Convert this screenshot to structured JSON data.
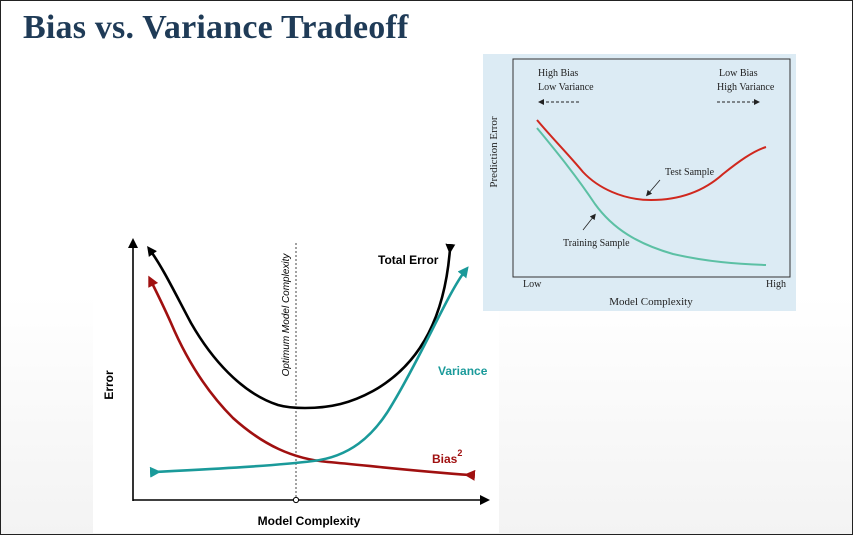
{
  "slide": {
    "title": "Bias vs. Variance Tradeoff"
  },
  "left_diagram": {
    "y_axis_label": "Error",
    "x_axis_label": "Model Complexity",
    "optimum_label": "Optimum Model Complexity",
    "total_error_label": "Total Error",
    "variance_label": "Variance",
    "bias_label": "Bias",
    "bias_exponent": "2",
    "colors": {
      "total_error": "#000000",
      "variance": "#1a9a9a",
      "bias": "#a01010"
    }
  },
  "right_diagram": {
    "y_axis_label": "Prediction Error",
    "x_axis_label": "Model Complexity",
    "x_low_label": "Low",
    "x_high_label": "High",
    "left_note_line1": "High Bias",
    "left_note_line2": "Low Variance",
    "right_note_line1": "Low Bias",
    "right_note_line2": "High Variance",
    "test_sample_label": "Test Sample",
    "training_sample_label": "Training Sample",
    "colors": {
      "test_sample": "#d0281e",
      "training_sample": "#5cc0a4"
    }
  }
}
